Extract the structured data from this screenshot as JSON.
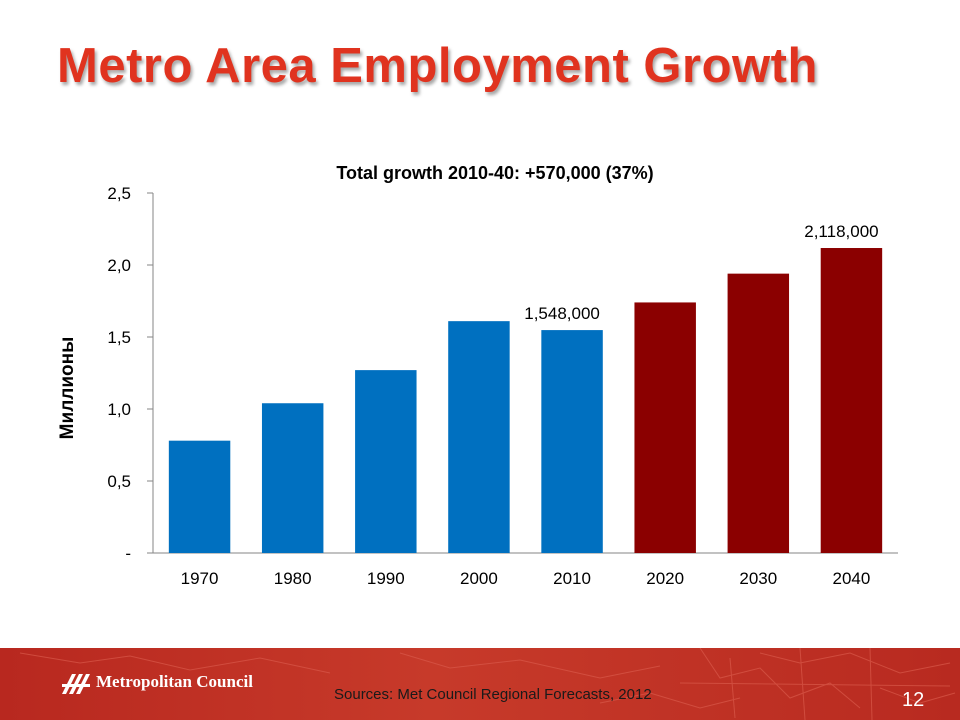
{
  "slide": {
    "title": "Metro Area Employment Growth",
    "sources": "Sources: Met Council Regional Forecasts, 2012",
    "page_number": "12",
    "logo_text": "Metropolitan Council"
  },
  "colors": {
    "title": "#e0331f",
    "historic_bar": "#0070c0",
    "forecast_bar": "#8b0000",
    "footer": "#c0392b"
  },
  "chart_data": {
    "type": "bar",
    "title": "Total growth 2010-40:  +570,000 (37%)",
    "ylabel": "Миллионы",
    "xlabel": "",
    "ylim": [
      0,
      2.5
    ],
    "yticks": [
      {
        "value": 0,
        "label": "-"
      },
      {
        "value": 0.5,
        "label": "0,5"
      },
      {
        "value": 1.0,
        "label": "1,0"
      },
      {
        "value": 1.5,
        "label": "1,5"
      },
      {
        "value": 2.0,
        "label": "2,0"
      },
      {
        "value": 2.5,
        "label": "2,5"
      }
    ],
    "categories": [
      "1970",
      "1980",
      "1990",
      "2000",
      "2010",
      "2020",
      "2030",
      "2040"
    ],
    "values": [
      0.78,
      1.04,
      1.27,
      1.61,
      1.548,
      1.74,
      1.94,
      2.118
    ],
    "bar_groups": [
      "historic",
      "historic",
      "historic",
      "historic",
      "historic",
      "forecast",
      "forecast",
      "forecast"
    ],
    "data_labels": [
      "",
      "",
      "",
      "",
      "1,548,000",
      "",
      "",
      "2,118,000"
    ],
    "grid": false,
    "legend": "none"
  }
}
